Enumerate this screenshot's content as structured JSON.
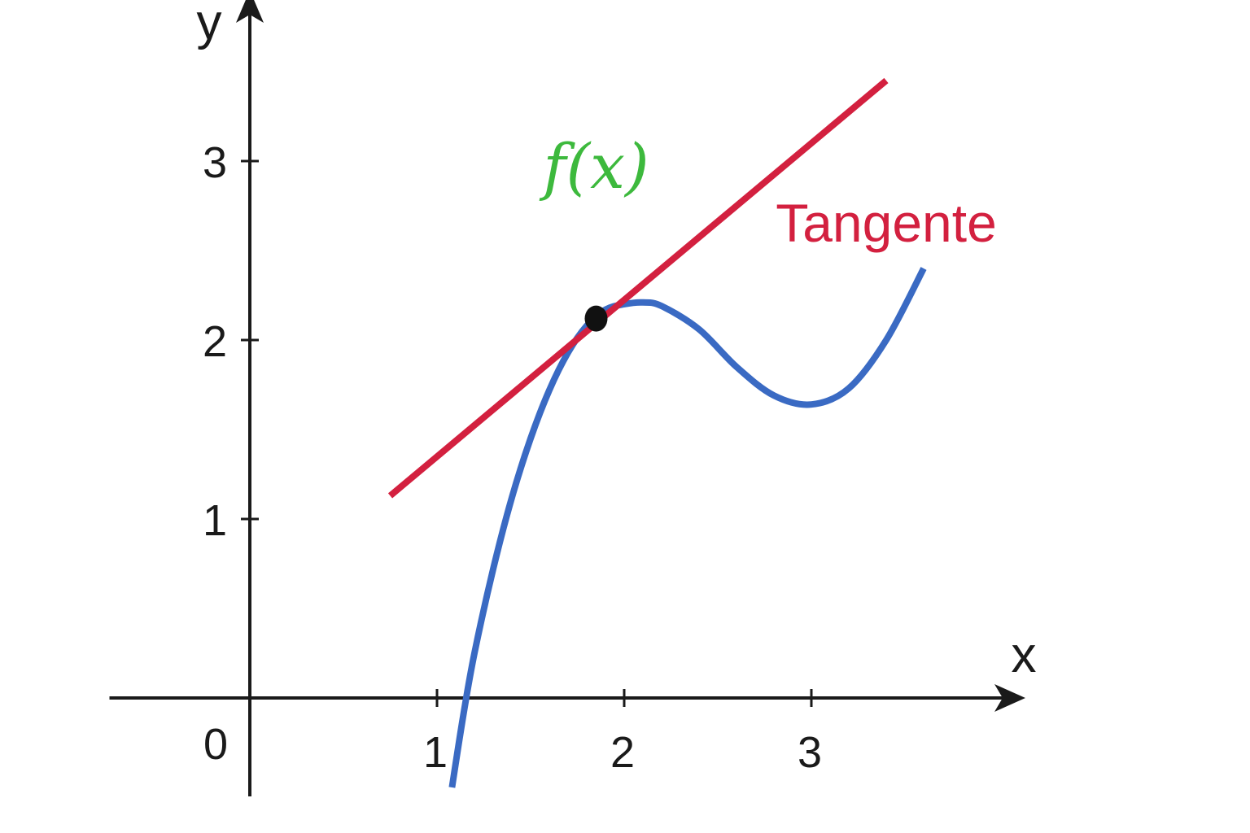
{
  "chart_data": {
    "type": "line",
    "xlabel": "x",
    "ylabel": "y",
    "origin_label": "0",
    "xlim": [
      -0.75,
      4.1
    ],
    "ylim": [
      -0.55,
      3.9
    ],
    "x_ticks": [
      1,
      2,
      3
    ],
    "y_ticks": [
      1,
      2,
      3
    ],
    "x_tick_labels": [
      "1",
      "2",
      "3"
    ],
    "y_tick_labels": [
      "1",
      "2",
      "3"
    ],
    "grid": false,
    "colors": {
      "curve": "#3a6ac3",
      "tangent": "#d3203f",
      "curve_label": "#3db93d",
      "point": "#111111",
      "axes": "#1a1a1a"
    },
    "series": [
      {
        "name": "f(x)",
        "role": "curve",
        "x": [
          1.08,
          1.14,
          1.2,
          1.3,
          1.4,
          1.5,
          1.6,
          1.7,
          1.8,
          1.9,
          2.0,
          2.1,
          2.2,
          2.4,
          2.6,
          2.8,
          3.0,
          3.2,
          3.4,
          3.6
        ],
        "y": [
          -0.5,
          -0.1,
          0.25,
          0.72,
          1.12,
          1.45,
          1.72,
          1.93,
          2.08,
          2.17,
          2.2,
          2.21,
          2.19,
          2.06,
          1.85,
          1.69,
          1.64,
          1.73,
          2.0,
          2.4
        ]
      },
      {
        "name": "Tangente",
        "role": "tangent",
        "x": [
          0.75,
          3.4
        ],
        "y": [
          1.13,
          3.45
        ]
      }
    ],
    "tangent_point": {
      "x": 1.85,
      "y": 2.12
    },
    "annotations": [
      {
        "text": "f(x)",
        "x": 1.85,
        "y": 2.85
      },
      {
        "text": "Tangente",
        "x": 2.9,
        "y": 2.55
      }
    ]
  }
}
